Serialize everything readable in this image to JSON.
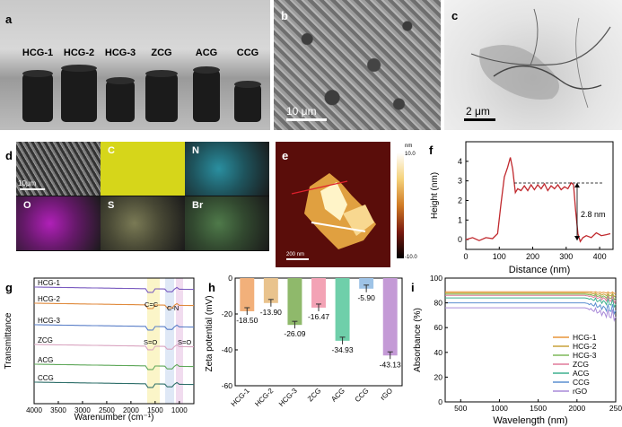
{
  "panel_labels": {
    "a": "a",
    "b": "b",
    "c": "c",
    "d": "d",
    "e": "e",
    "f": "f",
    "g": "g",
    "h": "h",
    "i": "i"
  },
  "panel_a": {
    "samples": [
      "HCG-1",
      "HCG-2",
      "HCG-3",
      "ZCG",
      "ACG",
      "CCG"
    ]
  },
  "panel_b": {
    "scale": "10 μm"
  },
  "panel_c": {
    "scale": "2 μm"
  },
  "panel_d": {
    "scale": "10μm",
    "maps": [
      "C",
      "N",
      "O",
      "S",
      "Br"
    ],
    "map_colors": [
      "#d6d61a",
      "#2a8fa0",
      "#b020b8",
      "#7a7a55",
      "#4f7a4a"
    ]
  },
  "panel_e": {
    "scale": "200 nm",
    "cbar_top": "10.0",
    "cbar_bottom": "-10.0",
    "cbar_unit": "nm"
  },
  "panel_f": {
    "chart_data": {
      "type": "line",
      "xlabel": "Distance (nm)",
      "ylabel": "Height (nm)",
      "xlim": [
        0,
        440
      ],
      "ylim": [
        -0.5,
        5
      ],
      "xticks": [
        "0",
        "100",
        "200",
        "300",
        "400"
      ],
      "yticks": [
        "0",
        "1",
        "2",
        "3",
        "4"
      ],
      "annotation": "2.8 nm",
      "series": [
        {
          "color": "#c0282d",
          "x": [
            0,
            20,
            40,
            60,
            80,
            95,
            105,
            115,
            125,
            133,
            140,
            148,
            155,
            165,
            175,
            185,
            195,
            205,
            215,
            225,
            235,
            245,
            255,
            265,
            275,
            285,
            295,
            305,
            315,
            322,
            328,
            335,
            342,
            350,
            360,
            375,
            390,
            405,
            420,
            432
          ],
          "y": [
            0,
            0.1,
            -0.05,
            0.1,
            0.05,
            0.3,
            1.8,
            3.2,
            3.7,
            4.2,
            3.6,
            2.4,
            2.6,
            2.5,
            2.75,
            2.5,
            2.8,
            2.55,
            2.8,
            2.6,
            2.85,
            2.5,
            2.75,
            2.6,
            2.8,
            2.55,
            2.7,
            2.6,
            2.9,
            2.8,
            1.5,
            0.3,
            -0.1,
            0.1,
            0.2,
            0.1,
            0.35,
            0.2,
            0.25,
            0.3
          ]
        }
      ]
    }
  },
  "panel_g": {
    "chart_data": {
      "type": "line",
      "xlabel": "Warenumber (cm⁻¹)",
      "ylabel": "Transmittance",
      "xlim": [
        4000,
        700
      ],
      "xticks": [
        "4000",
        "3500",
        "3000",
        "2500",
        "2000",
        "1500",
        "1000"
      ],
      "annotations": [
        "C=C",
        "C-N",
        "S=O",
        "S=O"
      ],
      "series": [
        {
          "name": "HCG-1",
          "color": "#7a5bc0",
          "offset": 0
        },
        {
          "name": "HCG-2",
          "color": "#e08a3c",
          "offset": 1
        },
        {
          "name": "HCG-3",
          "color": "#5a7fc8",
          "offset": 2
        },
        {
          "name": "ZCG",
          "color": "#d9a4c0",
          "offset": 3
        },
        {
          "name": "ACG",
          "color": "#5fa85a",
          "offset": 4
        },
        {
          "name": "CCG",
          "color": "#2e6f6a",
          "offset": 5
        }
      ]
    }
  },
  "panel_h": {
    "chart_data": {
      "type": "bar",
      "ylabel": "Zeta potential (mV)",
      "ylim": [
        -60,
        0
      ],
      "yticks": [
        "0",
        "-20",
        "-40",
        "-60"
      ],
      "categories": [
        "HCG-1",
        "HCG-2",
        "HCG-3",
        "ZCG",
        "ACG",
        "CCG",
        "rGO"
      ],
      "values": [
        -18.5,
        -13.9,
        -26.09,
        -16.47,
        -34.93,
        -5.9,
        -43.13
      ],
      "labels": [
        "-18.50",
        "-13.90",
        "-26.09",
        "-16.47",
        "-34.93",
        "-5.90",
        "-43.13"
      ],
      "colors": [
        "#f2b07a",
        "#e9c38d",
        "#8fb96b",
        "#f3a3b5",
        "#6fcfaa",
        "#9ec3e6",
        "#c49ad6"
      ]
    }
  },
  "panel_i": {
    "chart_data": {
      "type": "line",
      "xlabel": "Wavelength (nm)",
      "ylabel": "Absorbance (%)",
      "xlim": [
        300,
        2500
      ],
      "ylim": [
        0,
        100
      ],
      "xticks": [
        "500",
        "1000",
        "1500",
        "2000",
        "250"
      ],
      "yticks": [
        "0",
        "20",
        "40",
        "60",
        "80",
        "100"
      ],
      "series": [
        {
          "name": "HCG-1",
          "color": "#e8953a",
          "level": 89
        },
        {
          "name": "HCG-2",
          "color": "#c9a23a",
          "level": 88
        },
        {
          "name": "HCG-3",
          "color": "#7fb85a",
          "level": 87
        },
        {
          "name": "ZCG",
          "color": "#e07a9a",
          "level": 86
        },
        {
          "name": "ACG",
          "color": "#3fb08f",
          "level": 84
        },
        {
          "name": "CCG",
          "color": "#5b8fd0",
          "level": 80
        },
        {
          "name": "rGO",
          "color": "#a98ad8",
          "level": 76
        }
      ]
    }
  }
}
